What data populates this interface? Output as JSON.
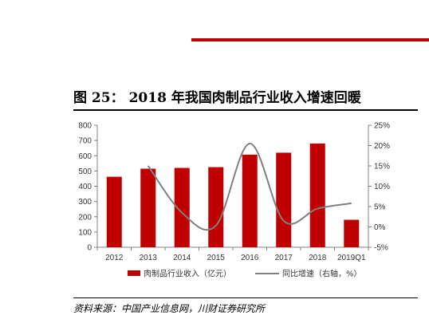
{
  "header": {
    "figure_label": "图 25：",
    "title": "2018 年我国肉制品行业收入增速回暖"
  },
  "source": "资料来源：中国产业信息网，川财证券研究所",
  "colors": {
    "bar": "#c00000",
    "line": "#808080",
    "accent_rule": "#c00000"
  },
  "chart_data": {
    "type": "bar",
    "categories": [
      "2012",
      "2013",
      "2014",
      "2015",
      "2016",
      "2017",
      "2018",
      "2019Q1"
    ],
    "series": [
      {
        "name": "肉制品行业收入（亿元）",
        "type": "bar",
        "axis": "left",
        "values": [
          462,
          515,
          520,
          525,
          607,
          620,
          680,
          180
        ]
      },
      {
        "name": "同比增速（右轴，%）",
        "type": "line",
        "axis": "right",
        "values": [
          null,
          15,
          3.5,
          0.3,
          20.5,
          1.5,
          4.5,
          5.8
        ]
      }
    ],
    "y_left": {
      "min": 0,
      "max": 800,
      "step": 100,
      "ticks": [
        "0",
        "100",
        "200",
        "300",
        "400",
        "500",
        "600",
        "700",
        "800"
      ]
    },
    "y_right": {
      "min": -5,
      "max": 25,
      "step": 5,
      "ticks": [
        "-5%",
        "0%",
        "5%",
        "10%",
        "15%",
        "20%",
        "25%"
      ]
    },
    "legend": "bottom",
    "grid": false
  }
}
